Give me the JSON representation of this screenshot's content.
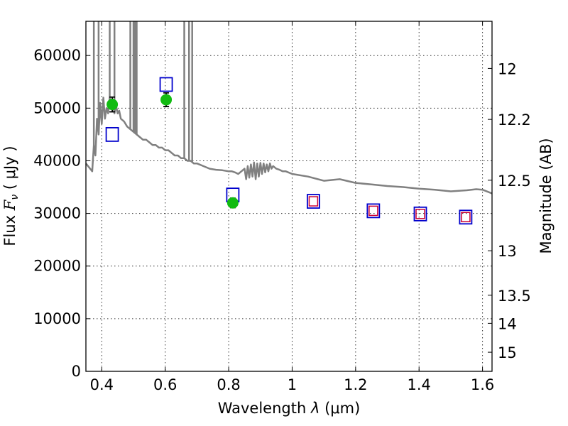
{
  "chart_data": {
    "type": "scatter",
    "xlabel": {
      "prefix": "Wavelength  ",
      "symbol": "λ",
      "unit": " (μm)"
    },
    "ylabel": {
      "prefix": "Flux  ",
      "symbol": "F",
      "sub": "ν",
      "unit": "  ( μJy )"
    },
    "y2label": "Magnitude (AB)",
    "xlim": [
      0.35,
      1.63
    ],
    "ylim": [
      0,
      66500
    ],
    "grid": true,
    "x_ticks": [
      {
        "v": 0.4,
        "label": "0.4"
      },
      {
        "v": 0.6,
        "label": "0.6"
      },
      {
        "v": 0.8,
        "label": "0.8"
      },
      {
        "v": 1.0,
        "label": "1"
      },
      {
        "v": 1.2,
        "label": "1.2"
      },
      {
        "v": 1.4,
        "label": "1.4"
      },
      {
        "v": 1.6,
        "label": "1.6"
      }
    ],
    "y_ticks": [
      {
        "v": 0,
        "label": "0"
      },
      {
        "v": 10000,
        "label": "10000"
      },
      {
        "v": 20000,
        "label": "20000"
      },
      {
        "v": 30000,
        "label": "30000"
      },
      {
        "v": 40000,
        "label": "40000"
      },
      {
        "v": 50000,
        "label": "50000"
      },
      {
        "v": 60000,
        "label": "60000"
      }
    ],
    "mag_ticks": [
      {
        "v": 12,
        "label": "12"
      },
      {
        "v": 12.2,
        "label": "12.2"
      },
      {
        "v": 12.5,
        "label": "12.5"
      },
      {
        "v": 13,
        "label": "13"
      },
      {
        "v": 13.5,
        "label": "13.5"
      },
      {
        "v": 14,
        "label": "14"
      },
      {
        "v": 15,
        "label": "15"
      }
    ],
    "mag_zero_point": 23.9,
    "series": [
      {
        "kind": "spectrum",
        "color": "#808080",
        "x": [
          0.35,
          0.37,
          0.375,
          0.38,
          0.385,
          0.39,
          0.395,
          0.4,
          0.405,
          0.41,
          0.415,
          0.42,
          0.425,
          0.43,
          0.435,
          0.44,
          0.445,
          0.45,
          0.455,
          0.46,
          0.47,
          0.48,
          0.49,
          0.5,
          0.51,
          0.52,
          0.53,
          0.54,
          0.55,
          0.56,
          0.57,
          0.58,
          0.59,
          0.6,
          0.61,
          0.62,
          0.63,
          0.64,
          0.65,
          0.66,
          0.67,
          0.68,
          0.69,
          0.7,
          0.72,
          0.74,
          0.76,
          0.78,
          0.8,
          0.81,
          0.82,
          0.83,
          0.84,
          0.85,
          0.855,
          0.86,
          0.865,
          0.87,
          0.875,
          0.88,
          0.885,
          0.89,
          0.895,
          0.9,
          0.905,
          0.91,
          0.915,
          0.92,
          0.925,
          0.93,
          0.935,
          0.94,
          0.95,
          0.96,
          0.97,
          0.98,
          1.0,
          1.05,
          1.1,
          1.15,
          1.2,
          1.25,
          1.3,
          1.35,
          1.4,
          1.45,
          1.5,
          1.55,
          1.58,
          1.6,
          1.63
        ],
        "y": [
          39500,
          38000,
          43000,
          41000,
          48000,
          45000,
          51000,
          47000,
          52000,
          48000,
          50000,
          49000,
          52000,
          50000,
          51000,
          49000,
          50500,
          49000,
          49500,
          48000,
          47500,
          46500,
          46000,
          45500,
          45000,
          44500,
          44000,
          44000,
          43500,
          43000,
          43000,
          42500,
          42500,
          42000,
          42000,
          41500,
          41000,
          41000,
          40500,
          40500,
          40000,
          40000,
          39500,
          39500,
          39000,
          38500,
          38300,
          38200,
          38000,
          38000,
          37800,
          37500,
          38000,
          38500,
          36500,
          39000,
          36800,
          39300,
          37000,
          39700,
          36500,
          39500,
          37000,
          39600,
          37500,
          39500,
          37800,
          39300,
          38000,
          39500,
          38500,
          39000,
          38500,
          38300,
          38000,
          38000,
          37500,
          37000,
          36200,
          36500,
          35800,
          35500,
          35200,
          35000,
          34700,
          34500,
          34200,
          34400,
          34600,
          34500,
          33800
        ]
      },
      {
        "kind": "spikes",
        "color": "#808080",
        "x": [
          0.375,
          0.39,
          0.425,
          0.44,
          0.49,
          0.5,
          0.505,
          0.51,
          0.66,
          0.675,
          0.685
        ],
        "top": [
          66500,
          66500,
          66500,
          66500,
          66500,
          66500,
          66500,
          66500,
          66500,
          66500,
          66500
        ]
      },
      {
        "kind": "open-squares-large",
        "color": "#0000cc",
        "x": [
          0.433,
          0.603,
          0.813,
          1.067,
          1.256,
          1.404,
          1.547
        ],
        "y": [
          45000,
          54500,
          33500,
          32300,
          30500,
          29900,
          29300
        ]
      },
      {
        "kind": "open-squares-small",
        "color": "#cc0033",
        "x": [
          1.067,
          1.256,
          1.404,
          1.547
        ],
        "y": [
          32300,
          30500,
          29900,
          29300
        ]
      },
      {
        "kind": "filled-circles",
        "color": "#11bb11",
        "x": [
          0.433,
          0.603,
          0.813
        ],
        "y": [
          50700,
          51600,
          32000
        ],
        "yerr": [
          1400,
          1300,
          900
        ]
      }
    ]
  }
}
